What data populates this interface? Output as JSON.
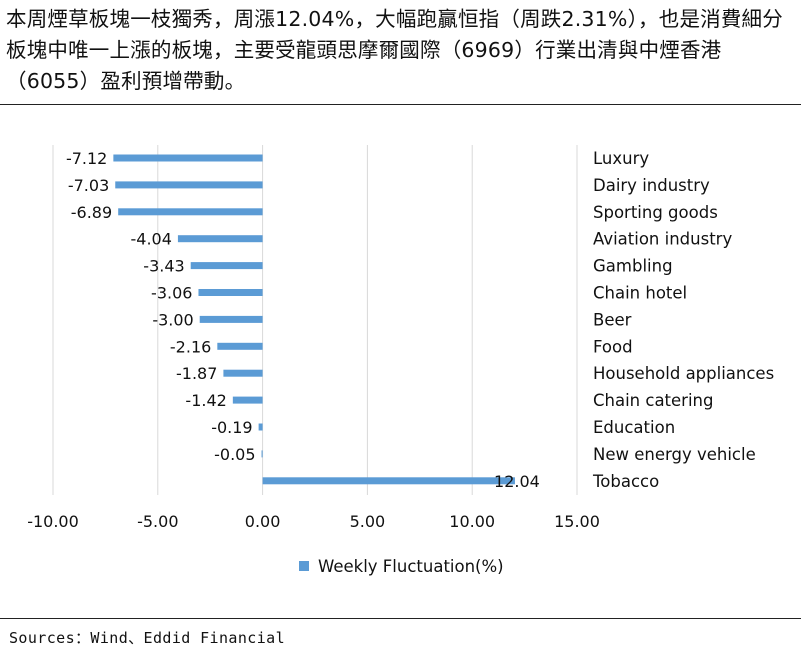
{
  "headline": "本周煙草板塊一枝獨秀，周漲12.04%，大幅跑贏恒指（周跌2.31%），也是消費細分板塊中唯一上漲的板塊，主要受龍頭思摩爾國際（6969）行業出清與中煙香港（6055）盈利預增帶動。",
  "source": "Sources：Wind、Eddid Financial",
  "chart_data": {
    "type": "bar",
    "orientation": "horizontal",
    "categories": [
      "Luxury",
      "Dairy industry",
      "Sporting goods",
      "Aviation industry",
      "Gambling",
      "Chain hotel",
      "Beer",
      "Food",
      "Household appliances",
      "Chain catering",
      "Education",
      "New energy vehicle",
      "Tobacco"
    ],
    "series": [
      {
        "name": "Weekly Fluctuation(%)",
        "values": [
          -7.12,
          -7.03,
          -6.89,
          -4.04,
          -3.43,
          -3.06,
          -3.0,
          -2.16,
          -1.87,
          -1.42,
          -0.19,
          -0.05,
          12.04
        ]
      }
    ],
    "data_labels": [
      "-7.12",
      "-7.03",
      "-6.89",
      "-4.04",
      "-3.43",
      "-3.06",
      "-3.00",
      "-2.16",
      "-1.87",
      "-1.42",
      "-0.19",
      "-0.05",
      "12.04"
    ],
    "xticks": [
      "-10.00",
      "-5.00",
      "0.00",
      "5.00",
      "10.00",
      "15.00"
    ],
    "xlim": [
      -10,
      15
    ],
    "xlabel": "",
    "ylabel": "",
    "grid": "vertical",
    "legend_position": "bottom",
    "bar_color": "#5b9bd5"
  }
}
